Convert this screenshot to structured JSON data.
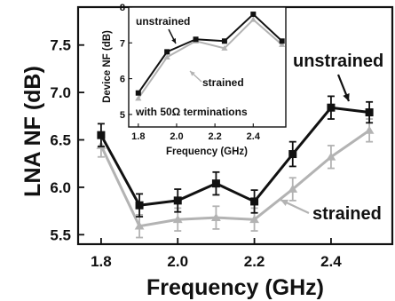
{
  "colors": {
    "unstrained": "#111111",
    "strained": "#b3b3b3",
    "axis": "#111111"
  },
  "chart_data": [
    {
      "type": "line",
      "xlabel": "Frequency (GHz)",
      "ylabel": "LNA NF (dB)",
      "xlim": [
        1.74,
        2.56
      ],
      "ylim": [
        5.4,
        7.9
      ],
      "xticks": [
        "1.8",
        "2.0",
        "2.2",
        "2.4"
      ],
      "yticks": [
        "5.5",
        "6.0",
        "6.5",
        "7.0",
        "7.5"
      ],
      "x": [
        1.8,
        1.9,
        2.0,
        2.1,
        2.2,
        2.3,
        2.4,
        2.5
      ],
      "series": [
        {
          "name": "unstrained",
          "values": [
            6.55,
            5.81,
            5.86,
            6.04,
            5.85,
            6.35,
            6.84,
            6.79
          ],
          "errors": [
            0.12,
            0.12,
            0.12,
            0.12,
            0.12,
            0.13,
            0.12,
            0.11
          ],
          "marker": "square"
        },
        {
          "name": "strained",
          "values": [
            6.44,
            5.59,
            5.66,
            5.68,
            5.66,
            5.98,
            6.32,
            6.6
          ],
          "errors": [
            0.12,
            0.12,
            0.12,
            0.12,
            0.12,
            0.12,
            0.12,
            0.12
          ],
          "marker": "triangle"
        }
      ],
      "annotations": [
        "unstrained",
        "strained"
      ]
    },
    {
      "type": "line",
      "xlabel": "Frequency (GHz)",
      "ylabel": "Device NF (dB)",
      "xlim": [
        1.75,
        2.57
      ],
      "ylim": [
        4.65,
        8.0
      ],
      "xticks": [
        "1.8",
        "2.0",
        "2.2",
        "2.4"
      ],
      "yticks": [
        "5",
        "6",
        "7",
        "8"
      ],
      "x": [
        1.8,
        1.95,
        2.1,
        2.25,
        2.4,
        2.55
      ],
      "series": [
        {
          "name": "unstrained",
          "values": [
            5.6,
            6.75,
            7.1,
            7.05,
            7.8,
            7.05
          ],
          "marker": "square"
        },
        {
          "name": "strained",
          "values": [
            5.45,
            6.6,
            7.05,
            6.85,
            7.65,
            6.95
          ],
          "marker": "triangle"
        }
      ],
      "annotations": [
        "unstrained",
        "strained",
        "with 50Ω terminations"
      ]
    }
  ]
}
